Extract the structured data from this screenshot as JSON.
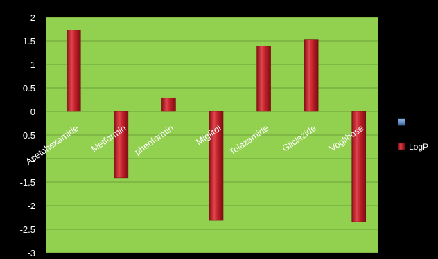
{
  "chart_data": {
    "type": "bar",
    "categories": [
      "Acetohexamide",
      "Metformin",
      "phenformin",
      "Miglitol",
      "Tolazamide",
      "Gliclazide",
      "Voglibose"
    ],
    "series": [
      {
        "name": "",
        "values": [
          null,
          null,
          null,
          null,
          null,
          null,
          null
        ]
      },
      {
        "name": "LogP",
        "values": [
          1.73,
          -1.41,
          0.29,
          -2.31,
          1.39,
          1.52,
          -2.34
        ]
      }
    ],
    "y_ticks": [
      "2",
      "1.5",
      "1",
      "0.5",
      "0",
      "-0.5",
      "-1",
      "-1.5",
      "-2",
      "-2.5",
      "-3"
    ],
    "ylim": [
      -3,
      2
    ],
    "grid": true,
    "legend_position": "right",
    "title": "",
    "xlabel": "",
    "ylabel": ""
  },
  "colors": {
    "outer_background": "#000000",
    "plot_background": "#92d050",
    "grid_line": "#6f9f3a",
    "bar_fill": "#c0202a",
    "bar_edge": "#7a0e12",
    "series_1_swatch": "#4f81bd",
    "text": "#ffffff"
  }
}
